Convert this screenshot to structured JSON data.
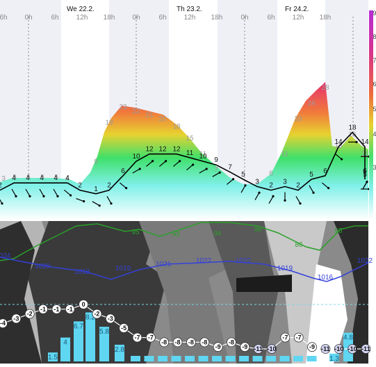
{
  "chart_data": {
    "type": "line",
    "days": [
      "We 22.2.",
      "Th 23.2.",
      "Fr 24.2."
    ],
    "hour_ticks": [
      "6h",
      "0h",
      "6h",
      "12h",
      "18h",
      "0h",
      "6h",
      "12h",
      "18h",
      "0h",
      "6h",
      "12h",
      "18h"
    ],
    "color_scale_labels": [
      "9",
      "8",
      "7",
      "6",
      "5",
      "4",
      "3"
    ],
    "wind_gust": {
      "values": [
        3,
        5,
        5,
        5,
        5,
        4,
        null,
        null,
        null,
        9,
        19,
        23,
        22,
        21,
        20,
        18,
        15,
        11,
        null,
        7,
        null,
        null,
        null,
        null,
        6,
        11,
        20,
        24,
        28,
        null,
        13,
        16,
        11
      ],
      "x": [
        0,
        5,
        10,
        15,
        20,
        25,
        30,
        35,
        40,
        45,
        50,
        55,
        60,
        65,
        70,
        75,
        80,
        85,
        90,
        95,
        100,
        105,
        110,
        115,
        120,
        125,
        130,
        135,
        140,
        145,
        150,
        155,
        160
      ]
    },
    "wind_speed": {
      "values": [
        2,
        4,
        4,
        4,
        4,
        4,
        2,
        1,
        2,
        6,
        10,
        12,
        12,
        12,
        11,
        10,
        9,
        7,
        null,
        5,
        3,
        2,
        3,
        2,
        5,
        6,
        null,
        14,
        18,
        14,
        null,
        5,
        6,
        6
      ],
      "labels": [
        "2",
        "4",
        "4",
        "4",
        "4",
        "4",
        "2",
        "1",
        "2",
        "6",
        "10",
        "12",
        "12",
        "12",
        "11",
        "10",
        "9",
        "7",
        "",
        "5",
        "3",
        "2",
        "3",
        "2",
        "5",
        "6",
        "",
        "14",
        "18",
        "14",
        "",
        "5",
        "6",
        "6"
      ]
    },
    "humidity": {
      "labels": [
        "95",
        "93",
        "94",
        "96",
        "86",
        "96"
      ]
    },
    "pressure": {
      "labels": [
        "1024",
        "1020",
        "1018",
        "1019",
        "1021",
        "1022",
        "1022",
        "1019",
        "1016",
        "1022"
      ]
    },
    "temperature": {
      "labels": [
        "-4",
        "-3",
        "-2",
        "-1",
        "-1",
        "-1",
        "0",
        "-2",
        "-3",
        "-5",
        "-7",
        "-7",
        "-8",
        "-8",
        "-8",
        "-8",
        "-9",
        "-8",
        "-9",
        "-11",
        "-10",
        "-7",
        "-7",
        "-9",
        "-11",
        "-10",
        "-10",
        "-11"
      ]
    },
    "precipitation": {
      "labels": [
        "1.5",
        "4",
        "6.7",
        "8.2",
        "5.8",
        "2.8",
        "1.3",
        "4.8"
      ],
      "values": [
        1.5,
        4,
        6.7,
        8.2,
        5.8,
        2.8,
        0.3,
        0.3,
        0.3,
        0.3,
        0.3,
        0.3,
        0.3,
        0.3,
        0.3,
        0.3,
        0.3,
        0.3,
        0.3,
        0.3,
        1.3,
        4.8
      ]
    }
  }
}
